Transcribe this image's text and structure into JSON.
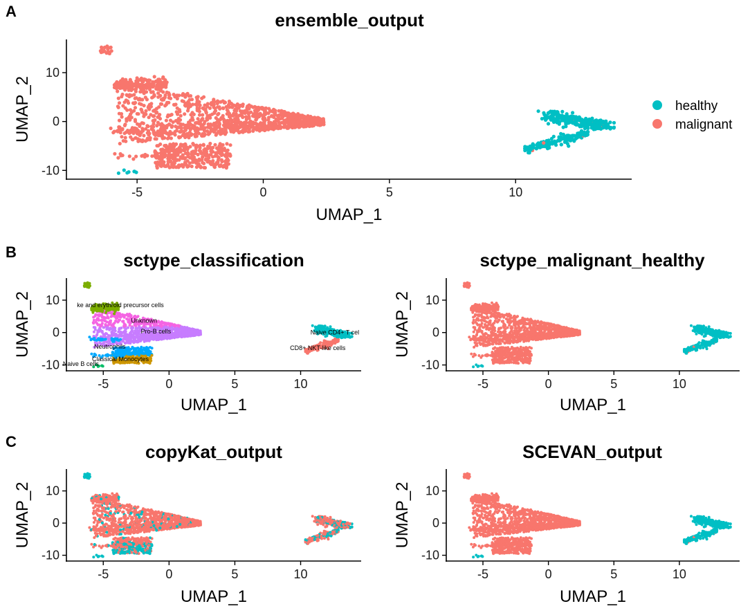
{
  "panel_labels": [
    "A",
    "B",
    "C"
  ],
  "colors": {
    "healthy": "#00BFC4",
    "malignant": "#F8766D"
  },
  "legend": {
    "position": "right",
    "items": [
      {
        "label": "healthy",
        "color": "#00BFC4"
      },
      {
        "label": "malignant",
        "color": "#F8766D"
      }
    ]
  },
  "chart_data": [
    {
      "type": "scatter",
      "title": "ensemble_output",
      "panel": "A",
      "xlabel": "UMAP_1",
      "ylabel": "UMAP_2",
      "xlim": [
        -7.8,
        14.6
      ],
      "ylim": [
        -11.8,
        16.8
      ],
      "xticks": [
        -5,
        0,
        5,
        10
      ],
      "yticks": [
        -10,
        0,
        10
      ],
      "grid": false,
      "coloring": "malignant-healthy"
    },
    {
      "type": "scatter",
      "title": "sctype_classification",
      "panel": "B",
      "xlabel": "UMAP_1",
      "ylabel": "UMAP_2",
      "xlim": [
        -7.8,
        14.6
      ],
      "ylim": [
        -11.8,
        16.8
      ],
      "xticks": [
        -5,
        0,
        5,
        10
      ],
      "yticks": [
        -10,
        0,
        10
      ],
      "grid": false,
      "coloring": "celltype",
      "cell_type_colors": {
        "erythroid": "#7CAE00",
        "unknown": "#F564E3",
        "prob": "#C77CFF",
        "neutrophils": "#00A9FF",
        "monocytes": "#CD9600",
        "naiveb": "#00BE67",
        "cd4": "#00BFC4",
        "cd8nkt": "#F8766D"
      },
      "annotations": [
        {
          "text": "ke and erythroid precursor cells",
          "x": -3.7,
          "y": 7.8
        },
        {
          "text": "Unknown",
          "x": -1.9,
          "y": 3.0
        },
        {
          "text": "Pro-B cells",
          "x": -1.0,
          "y": -0.3
        },
        {
          "text": "Naive CD4+ T cel",
          "x": 12.6,
          "y": -0.6
        },
        {
          "text": "Neutrophils",
          "x": -4.5,
          "y": -5.0
        },
        {
          "text": "CD8+ NKT-like cells",
          "x": 11.3,
          "y": -5.4
        },
        {
          "text": "Classical Monocytes",
          "x": -3.7,
          "y": -8.8
        },
        {
          "text": "Naive B cells",
          "x": -6.7,
          "y": -10.3
        }
      ]
    },
    {
      "type": "scatter",
      "title": "sctype_malignant_healthy",
      "panel": "B",
      "xlabel": "UMAP_1",
      "ylabel": "UMAP_2",
      "xlim": [
        -7.8,
        14.6
      ],
      "ylim": [
        -11.8,
        16.8
      ],
      "xticks": [
        -5,
        0,
        5,
        10
      ],
      "yticks": [
        -10,
        0,
        10
      ],
      "grid": false,
      "coloring": "malignant-healthy"
    },
    {
      "type": "scatter",
      "title": "copyKat_output",
      "panel": "C",
      "xlabel": "UMAP_1",
      "ylabel": "UMAP_2",
      "xlim": [
        -7.8,
        14.6
      ],
      "ylim": [
        -11.8,
        16.8
      ],
      "xticks": [
        -5,
        0,
        5,
        10
      ],
      "yticks": [
        -10,
        0,
        10
      ],
      "grid": false,
      "coloring": "copykat"
    },
    {
      "type": "scatter",
      "title": "SCEVAN_output",
      "panel": "C",
      "xlabel": "UMAP_1",
      "ylabel": "UMAP_2",
      "xlim": [
        -7.8,
        14.6
      ],
      "ylim": [
        -11.8,
        16.8
      ],
      "xticks": [
        -5,
        0,
        5,
        10
      ],
      "yticks": [
        -10,
        0,
        10
      ],
      "grid": false,
      "coloring": "malignant-healthy"
    }
  ]
}
